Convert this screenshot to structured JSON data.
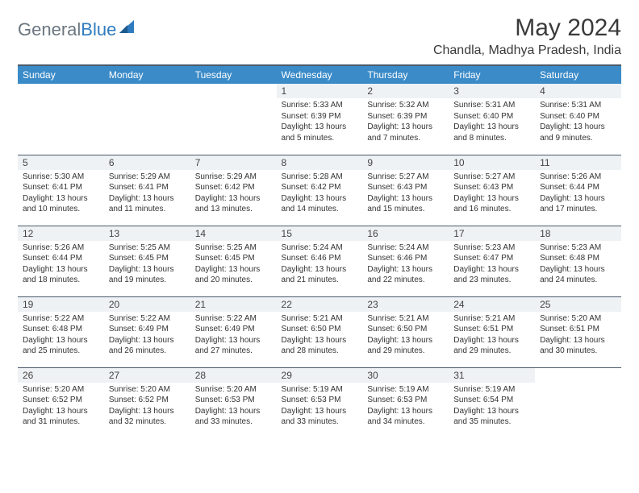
{
  "logo": {
    "general": "General",
    "blue": "Blue"
  },
  "title": "May 2024",
  "location": "Chandla, Madhya Pradesh, India",
  "colors": {
    "header_bg": "#3b8bc8",
    "header_text": "#ffffff",
    "border": "#4a5a6a",
    "daynum_bg": "#eef2f5",
    "logo_gray": "#6b7680",
    "logo_blue": "#2f7bbf"
  },
  "day_headers": [
    "Sunday",
    "Monday",
    "Tuesday",
    "Wednesday",
    "Thursday",
    "Friday",
    "Saturday"
  ],
  "weeks": [
    [
      {
        "n": "",
        "sr": "",
        "ss": "",
        "dl": ""
      },
      {
        "n": "",
        "sr": "",
        "ss": "",
        "dl": ""
      },
      {
        "n": "",
        "sr": "",
        "ss": "",
        "dl": ""
      },
      {
        "n": "1",
        "sr": "Sunrise: 5:33 AM",
        "ss": "Sunset: 6:39 PM",
        "dl": "Daylight: 13 hours and 5 minutes."
      },
      {
        "n": "2",
        "sr": "Sunrise: 5:32 AM",
        "ss": "Sunset: 6:39 PM",
        "dl": "Daylight: 13 hours and 7 minutes."
      },
      {
        "n": "3",
        "sr": "Sunrise: 5:31 AM",
        "ss": "Sunset: 6:40 PM",
        "dl": "Daylight: 13 hours and 8 minutes."
      },
      {
        "n": "4",
        "sr": "Sunrise: 5:31 AM",
        "ss": "Sunset: 6:40 PM",
        "dl": "Daylight: 13 hours and 9 minutes."
      }
    ],
    [
      {
        "n": "5",
        "sr": "Sunrise: 5:30 AM",
        "ss": "Sunset: 6:41 PM",
        "dl": "Daylight: 13 hours and 10 minutes."
      },
      {
        "n": "6",
        "sr": "Sunrise: 5:29 AM",
        "ss": "Sunset: 6:41 PM",
        "dl": "Daylight: 13 hours and 11 minutes."
      },
      {
        "n": "7",
        "sr": "Sunrise: 5:29 AM",
        "ss": "Sunset: 6:42 PM",
        "dl": "Daylight: 13 hours and 13 minutes."
      },
      {
        "n": "8",
        "sr": "Sunrise: 5:28 AM",
        "ss": "Sunset: 6:42 PM",
        "dl": "Daylight: 13 hours and 14 minutes."
      },
      {
        "n": "9",
        "sr": "Sunrise: 5:27 AM",
        "ss": "Sunset: 6:43 PM",
        "dl": "Daylight: 13 hours and 15 minutes."
      },
      {
        "n": "10",
        "sr": "Sunrise: 5:27 AM",
        "ss": "Sunset: 6:43 PM",
        "dl": "Daylight: 13 hours and 16 minutes."
      },
      {
        "n": "11",
        "sr": "Sunrise: 5:26 AM",
        "ss": "Sunset: 6:44 PM",
        "dl": "Daylight: 13 hours and 17 minutes."
      }
    ],
    [
      {
        "n": "12",
        "sr": "Sunrise: 5:26 AM",
        "ss": "Sunset: 6:44 PM",
        "dl": "Daylight: 13 hours and 18 minutes."
      },
      {
        "n": "13",
        "sr": "Sunrise: 5:25 AM",
        "ss": "Sunset: 6:45 PM",
        "dl": "Daylight: 13 hours and 19 minutes."
      },
      {
        "n": "14",
        "sr": "Sunrise: 5:25 AM",
        "ss": "Sunset: 6:45 PM",
        "dl": "Daylight: 13 hours and 20 minutes."
      },
      {
        "n": "15",
        "sr": "Sunrise: 5:24 AM",
        "ss": "Sunset: 6:46 PM",
        "dl": "Daylight: 13 hours and 21 minutes."
      },
      {
        "n": "16",
        "sr": "Sunrise: 5:24 AM",
        "ss": "Sunset: 6:46 PM",
        "dl": "Daylight: 13 hours and 22 minutes."
      },
      {
        "n": "17",
        "sr": "Sunrise: 5:23 AM",
        "ss": "Sunset: 6:47 PM",
        "dl": "Daylight: 13 hours and 23 minutes."
      },
      {
        "n": "18",
        "sr": "Sunrise: 5:23 AM",
        "ss": "Sunset: 6:48 PM",
        "dl": "Daylight: 13 hours and 24 minutes."
      }
    ],
    [
      {
        "n": "19",
        "sr": "Sunrise: 5:22 AM",
        "ss": "Sunset: 6:48 PM",
        "dl": "Daylight: 13 hours and 25 minutes."
      },
      {
        "n": "20",
        "sr": "Sunrise: 5:22 AM",
        "ss": "Sunset: 6:49 PM",
        "dl": "Daylight: 13 hours and 26 minutes."
      },
      {
        "n": "21",
        "sr": "Sunrise: 5:22 AM",
        "ss": "Sunset: 6:49 PM",
        "dl": "Daylight: 13 hours and 27 minutes."
      },
      {
        "n": "22",
        "sr": "Sunrise: 5:21 AM",
        "ss": "Sunset: 6:50 PM",
        "dl": "Daylight: 13 hours and 28 minutes."
      },
      {
        "n": "23",
        "sr": "Sunrise: 5:21 AM",
        "ss": "Sunset: 6:50 PM",
        "dl": "Daylight: 13 hours and 29 minutes."
      },
      {
        "n": "24",
        "sr": "Sunrise: 5:21 AM",
        "ss": "Sunset: 6:51 PM",
        "dl": "Daylight: 13 hours and 29 minutes."
      },
      {
        "n": "25",
        "sr": "Sunrise: 5:20 AM",
        "ss": "Sunset: 6:51 PM",
        "dl": "Daylight: 13 hours and 30 minutes."
      }
    ],
    [
      {
        "n": "26",
        "sr": "Sunrise: 5:20 AM",
        "ss": "Sunset: 6:52 PM",
        "dl": "Daylight: 13 hours and 31 minutes."
      },
      {
        "n": "27",
        "sr": "Sunrise: 5:20 AM",
        "ss": "Sunset: 6:52 PM",
        "dl": "Daylight: 13 hours and 32 minutes."
      },
      {
        "n": "28",
        "sr": "Sunrise: 5:20 AM",
        "ss": "Sunset: 6:53 PM",
        "dl": "Daylight: 13 hours and 33 minutes."
      },
      {
        "n": "29",
        "sr": "Sunrise: 5:19 AM",
        "ss": "Sunset: 6:53 PM",
        "dl": "Daylight: 13 hours and 33 minutes."
      },
      {
        "n": "30",
        "sr": "Sunrise: 5:19 AM",
        "ss": "Sunset: 6:53 PM",
        "dl": "Daylight: 13 hours and 34 minutes."
      },
      {
        "n": "31",
        "sr": "Sunrise: 5:19 AM",
        "ss": "Sunset: 6:54 PM",
        "dl": "Daylight: 13 hours and 35 minutes."
      },
      {
        "n": "",
        "sr": "",
        "ss": "",
        "dl": ""
      }
    ]
  ]
}
